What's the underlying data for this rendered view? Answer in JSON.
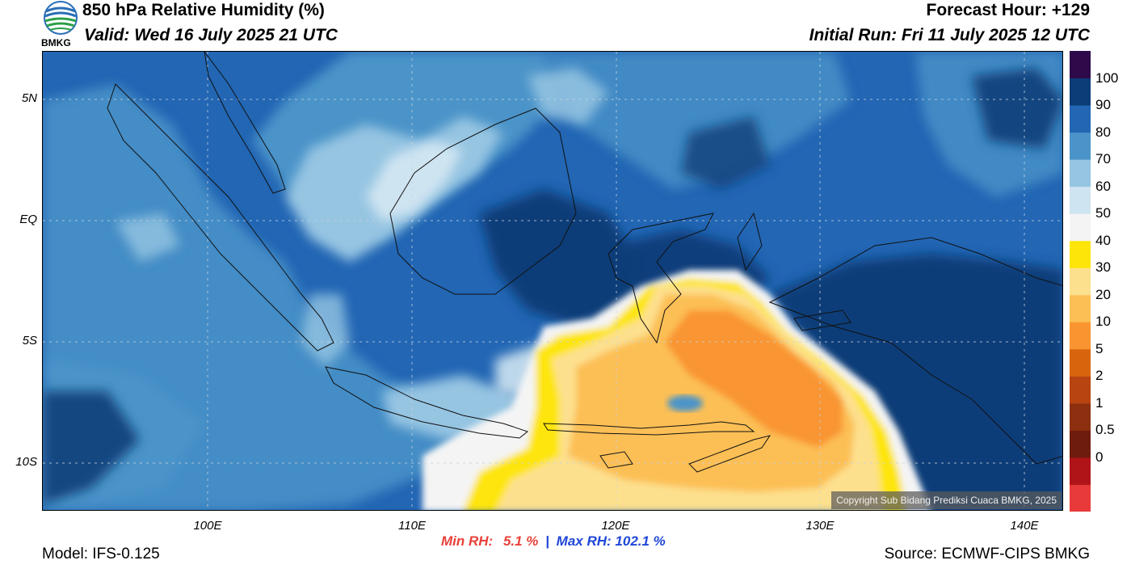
{
  "header": {
    "title": "850 hPa Relative Humidity (%)",
    "valid": "Valid: Wed 16 July 2025 21 UTC",
    "forecast_hour": "Forecast Hour: +129",
    "initial_run": "Initial Run: Fri 11 July 2025 12 UTC"
  },
  "logo": {
    "text": "BMKG",
    "icon": "bmkg-logo-icon"
  },
  "map": {
    "lat_labels": [
      "5N",
      "EQ",
      "5S",
      "10S"
    ],
    "lon_labels": [
      "100E",
      "110E",
      "120E",
      "130E",
      "140E"
    ],
    "copyright": "Copyright Sub Bidang Prediksi Cuaca BMKG, 2025"
  },
  "colorbar": {
    "labels": [
      "100",
      "90",
      "80",
      "70",
      "60",
      "50",
      "40",
      "30",
      "20",
      "10",
      "5",
      "2",
      "1",
      "0.5",
      "0"
    ],
    "colors": [
      "#e83a3a",
      "#b01418",
      "#6e1c0e",
      "#8c3010",
      "#b84412",
      "#d8650e",
      "#f99530",
      "#fcbf55",
      "#fde08e",
      "#fde50a",
      "#f4f4f4",
      "#cfe4f1",
      "#96c5e2",
      "#4b94c9",
      "#2266b4",
      "#0c3d78",
      "#2e0a4a"
    ]
  },
  "footer": {
    "min_rh_label": "Min RH:",
    "min_rh_value": "5.1 %",
    "max_rh_label": "Max RH: 102.1 %",
    "separator": "|",
    "model": "Model: IFS-0.125",
    "source": "Source: ECMWF-CIPS BMKG"
  }
}
